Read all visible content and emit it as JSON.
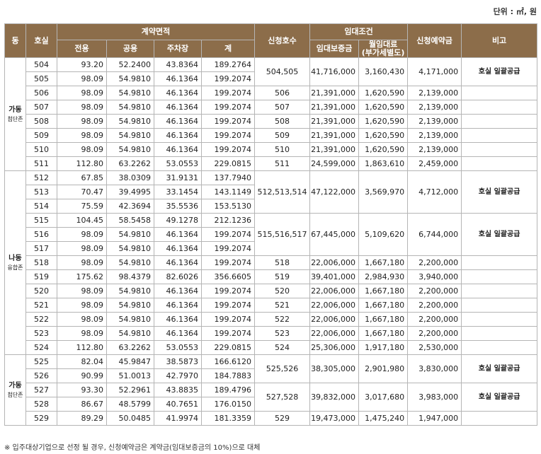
{
  "unit_label": "단위 : ㎡, 원",
  "header": {
    "dong": "동",
    "room": "호실",
    "contract_area": "계약면적",
    "exclusive": "전용",
    "common": "공용",
    "parking": "주차장",
    "total": "계",
    "apply_rooms": "신청호수",
    "lease_terms": "임대조건",
    "deposit": "임대보증금",
    "monthly_rent_l1": "월임대료",
    "monthly_rent_l2": "(부가세별도)",
    "apply_deposit": "신청예약금",
    "remark": "비고"
  },
  "groups": [
    {
      "dong": "가동",
      "zone": "첨단존",
      "rows": [
        [
          "504",
          "93.20",
          "52.2400",
          "43.8364",
          "189.2764"
        ],
        [
          "505",
          "98.09",
          "54.9810",
          "46.1364",
          "199.2074"
        ],
        [
          "506",
          "98.09",
          "54.9810",
          "46.1364",
          "199.2074"
        ],
        [
          "507",
          "98.09",
          "54.9810",
          "46.1364",
          "199.2074"
        ],
        [
          "508",
          "98.09",
          "54.9810",
          "46.1364",
          "199.2074"
        ],
        [
          "509",
          "98.09",
          "54.9810",
          "46.1364",
          "199.2074"
        ],
        [
          "510",
          "98.09",
          "54.9810",
          "46.1364",
          "199.2074"
        ],
        [
          "511",
          "112.80",
          "63.2262",
          "53.0553",
          "229.0815"
        ]
      ],
      "leases": [
        {
          "span": 2,
          "rooms": "504,505",
          "deposit": "41,716,000",
          "rent": "3,160,430",
          "apply": "4,171,000",
          "remark": "호실 일괄공급"
        },
        {
          "span": 1,
          "rooms": "506",
          "deposit": "21,391,000",
          "rent": "1,620,590",
          "apply": "2,139,000",
          "remark": ""
        },
        {
          "span": 1,
          "rooms": "507",
          "deposit": "21,391,000",
          "rent": "1,620,590",
          "apply": "2,139,000",
          "remark": ""
        },
        {
          "span": 1,
          "rooms": "508",
          "deposit": "21,391,000",
          "rent": "1,620,590",
          "apply": "2,139,000",
          "remark": ""
        },
        {
          "span": 1,
          "rooms": "509",
          "deposit": "21,391,000",
          "rent": "1,620,590",
          "apply": "2,139,000",
          "remark": ""
        },
        {
          "span": 1,
          "rooms": "510",
          "deposit": "21,391,000",
          "rent": "1,620,590",
          "apply": "2,139,000",
          "remark": ""
        },
        {
          "span": 1,
          "rooms": "511",
          "deposit": "24,599,000",
          "rent": "1,863,610",
          "apply": "2,459,000",
          "remark": ""
        }
      ]
    },
    {
      "dong": "나동",
      "zone": "융합존",
      "rows": [
        [
          "512",
          "67.85",
          "38.0309",
          "31.9131",
          "137.7940"
        ],
        [
          "513",
          "70.47",
          "39.4995",
          "33.1454",
          "143.1149"
        ],
        [
          "514",
          "75.59",
          "42.3694",
          "35.5536",
          "153.5130"
        ],
        [
          "515",
          "104.45",
          "58.5458",
          "49.1278",
          "212.1236"
        ],
        [
          "516",
          "98.09",
          "54.9810",
          "46.1364",
          "199.2074"
        ],
        [
          "517",
          "98.09",
          "54.9810",
          "46.1364",
          "199.2074"
        ],
        [
          "518",
          "98.09",
          "54.9810",
          "46.1364",
          "199.2074"
        ],
        [
          "519",
          "175.62",
          "98.4379",
          "82.6026",
          "356.6605"
        ],
        [
          "520",
          "98.09",
          "54.9810",
          "46.1364",
          "199.2074"
        ],
        [
          "521",
          "98.09",
          "54.9810",
          "46.1364",
          "199.2074"
        ],
        [
          "522",
          "98.09",
          "54.9810",
          "46.1364",
          "199.2074"
        ],
        [
          "523",
          "98.09",
          "54.9810",
          "46.1364",
          "199.2074"
        ],
        [
          "524",
          "112.80",
          "63.2262",
          "53.0553",
          "229.0815"
        ]
      ],
      "leases": [
        {
          "span": 3,
          "rooms": "512,513,514",
          "deposit": "47,122,000",
          "rent": "3,569,970",
          "apply": "4,712,000",
          "remark": "호실 일괄공급"
        },
        {
          "span": 3,
          "rooms": "515,516,517",
          "deposit": "67,445,000",
          "rent": "5,109,620",
          "apply": "6,744,000",
          "remark": "호실 일괄공급"
        },
        {
          "span": 1,
          "rooms": "518",
          "deposit": "22,006,000",
          "rent": "1,667,180",
          "apply": "2,200,000",
          "remark": ""
        },
        {
          "span": 1,
          "rooms": "519",
          "deposit": "39,401,000",
          "rent": "2,984,930",
          "apply": "3,940,000",
          "remark": ""
        },
        {
          "span": 1,
          "rooms": "520",
          "deposit": "22,006,000",
          "rent": "1,667,180",
          "apply": "2,200,000",
          "remark": ""
        },
        {
          "span": 1,
          "rooms": "521",
          "deposit": "22,006,000",
          "rent": "1,667,180",
          "apply": "2,200,000",
          "remark": ""
        },
        {
          "span": 1,
          "rooms": "522",
          "deposit": "22,006,000",
          "rent": "1,667,180",
          "apply": "2,200,000",
          "remark": ""
        },
        {
          "span": 1,
          "rooms": "523",
          "deposit": "22,006,000",
          "rent": "1,667,180",
          "apply": "2,200,000",
          "remark": ""
        },
        {
          "span": 1,
          "rooms": "524",
          "deposit": "25,306,000",
          "rent": "1,917,180",
          "apply": "2,530,000",
          "remark": ""
        }
      ]
    },
    {
      "dong": "가동",
      "zone": "첨단존",
      "rows": [
        [
          "525",
          "82.04",
          "45.9847",
          "38.5873",
          "166.6120"
        ],
        [
          "526",
          "90.99",
          "51.0013",
          "42.7970",
          "184.7883"
        ],
        [
          "527",
          "93.30",
          "52.2961",
          "43.8835",
          "189.4796"
        ],
        [
          "528",
          "86.67",
          "48.5799",
          "40.7651",
          "176.0150"
        ],
        [
          "529",
          "89.29",
          "50.0485",
          "41.9974",
          "181.3359"
        ]
      ],
      "leases": [
        {
          "span": 2,
          "rooms": "525,526",
          "deposit": "38,305,000",
          "rent": "2,901,980",
          "apply": "3,830,000",
          "remark": "호실 일괄공급"
        },
        {
          "span": 2,
          "rooms": "527,528",
          "deposit": "39,832,000",
          "rent": "3,017,680",
          "apply": "3,983,000",
          "remark": "호실 일괄공급"
        },
        {
          "span": 1,
          "rooms": "529",
          "deposit": "19,473,000",
          "rent": "1,475,240",
          "apply": "1,947,000",
          "remark": ""
        }
      ]
    }
  ],
  "footnote": "※ 입주대상기업으로 선정 될 경우, 신청예약금은 계약금(임대보증금의 10%)으로 대체"
}
